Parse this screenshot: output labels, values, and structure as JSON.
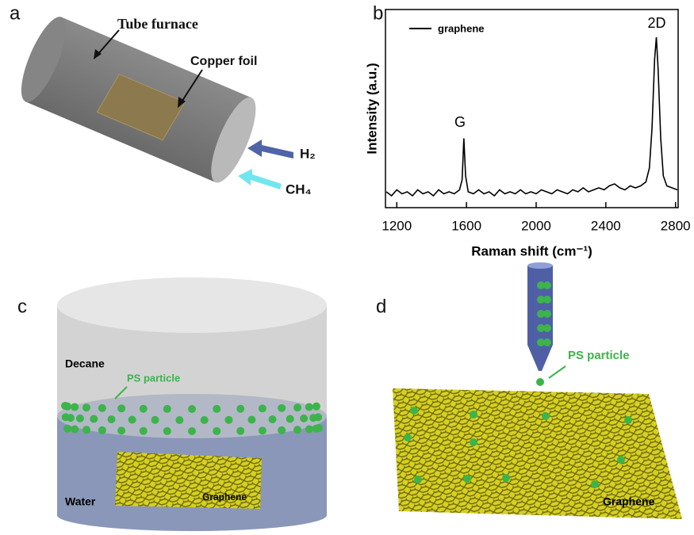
{
  "panels": {
    "a": {
      "label": "a",
      "tube": "Tube furnace",
      "foil": "Copper foil",
      "h2": "H₂",
      "ch4": "CH₄"
    },
    "b": {
      "label": "b"
    },
    "c": {
      "label": "c",
      "decane": "Decane",
      "particle": "PS particle",
      "water": "Water",
      "graphene": "Graphene"
    },
    "d": {
      "label": "d",
      "particle": "PS particle",
      "graphene": "Graphene"
    }
  },
  "chart_data": {
    "type": "line",
    "xlabel": "Raman shift (cm⁻¹)",
    "ylabel": "Intensity (a.u.)",
    "annotations": [
      "G",
      "2D"
    ],
    "x": [
      1140,
      1170,
      1200,
      1230,
      1260,
      1290,
      1320,
      1350,
      1380,
      1410,
      1440,
      1470,
      1500,
      1530,
      1560,
      1575,
      1585,
      1595,
      1610,
      1640,
      1670,
      1700,
      1730,
      1760,
      1790,
      1820,
      1850,
      1880,
      1910,
      1940,
      1970,
      2000,
      2030,
      2060,
      2090,
      2120,
      2150,
      2180,
      2210,
      2240,
      2270,
      2300,
      2330,
      2360,
      2390,
      2420,
      2450,
      2480,
      2510,
      2540,
      2570,
      2600,
      2630,
      2650,
      2665,
      2680,
      2690,
      2700,
      2715,
      2730,
      2750,
      2780,
      2810
    ],
    "series": [
      {
        "name": "graphene",
        "color": "#000000",
        "values": [
          8,
          6,
          9,
          7,
          8,
          6,
          9,
          7,
          8,
          6,
          9,
          7,
          8,
          7,
          9,
          14,
          35,
          16,
          8,
          7,
          9,
          7,
          8,
          6,
          9,
          7,
          8,
          7,
          9,
          7,
          8,
          7,
          9,
          8,
          7,
          9,
          8,
          7,
          9,
          8,
          10,
          8,
          9,
          10,
          9,
          11,
          12,
          10,
          9,
          11,
          10,
          11,
          13,
          20,
          40,
          75,
          86,
          70,
          35,
          16,
          11,
          10,
          9
        ]
      }
    ],
    "xlim": [
      1135,
      2815
    ],
    "xticks": [
      1200,
      1600,
      2000,
      2400,
      2800
    ],
    "ylim": [
      0,
      100
    ]
  }
}
